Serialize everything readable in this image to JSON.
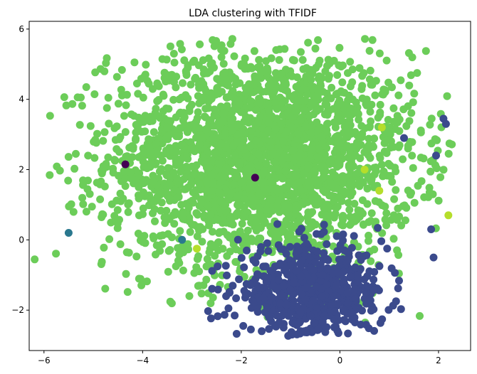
{
  "chart_data": {
    "type": "scatter",
    "title": "LDA clustering with TFIDF",
    "xlabel": "",
    "ylabel": "",
    "xlim": [
      -6.3,
      2.65
    ],
    "ylim": [
      -3.15,
      6.22
    ],
    "xticks": [
      -6,
      -4,
      -2,
      0,
      2
    ],
    "yticks": [
      -2,
      0,
      2,
      4,
      6
    ],
    "grid": false,
    "legend": "none",
    "colors": {
      "green": "#6ccd59",
      "navy": "#3b4a8c",
      "purple": "#440154",
      "teal": "#2a788e",
      "lime": "#b5de2b"
    },
    "clusters": [
      {
        "color": "green",
        "n": 2600,
        "cx": -1.6,
        "cy": 2.3,
        "sx": 1.55,
        "sy": 1.55,
        "xmin": -6.2,
        "xmax": 2.3,
        "ymin": -2.7,
        "ymax": 5.8
      },
      {
        "color": "navy",
        "n": 650,
        "cx": -0.6,
        "cy": -1.5,
        "sx": 0.75,
        "sy": 0.65,
        "xmin": -2.8,
        "xmax": 1.3,
        "ymin": -2.75,
        "ymax": 1.2
      }
    ],
    "points": [
      {
        "x": -4.35,
        "y": 2.15,
        "color": "purple"
      },
      {
        "x": -1.72,
        "y": 1.77,
        "color": "purple"
      },
      {
        "x": -5.5,
        "y": 0.2,
        "color": "teal"
      },
      {
        "x": -3.2,
        "y": 0.0,
        "color": "teal"
      },
      {
        "x": 2.1,
        "y": 3.45,
        "color": "navy"
      },
      {
        "x": 2.15,
        "y": 3.3,
        "color": "navy"
      },
      {
        "x": 1.95,
        "y": 2.4,
        "color": "navy"
      },
      {
        "x": 1.3,
        "y": 2.9,
        "color": "navy"
      },
      {
        "x": 1.85,
        "y": 0.3,
        "color": "navy"
      },
      {
        "x": 1.9,
        "y": -0.5,
        "color": "navy"
      },
      {
        "x": 0.85,
        "y": 3.2,
        "color": "lime"
      },
      {
        "x": -2.9,
        "y": -0.25,
        "color": "lime"
      },
      {
        "x": 0.5,
        "y": 2.0,
        "color": "lime"
      },
      {
        "x": 0.8,
        "y": 1.4,
        "color": "lime"
      },
      {
        "x": 2.2,
        "y": 0.7,
        "color": "lime"
      }
    ]
  }
}
